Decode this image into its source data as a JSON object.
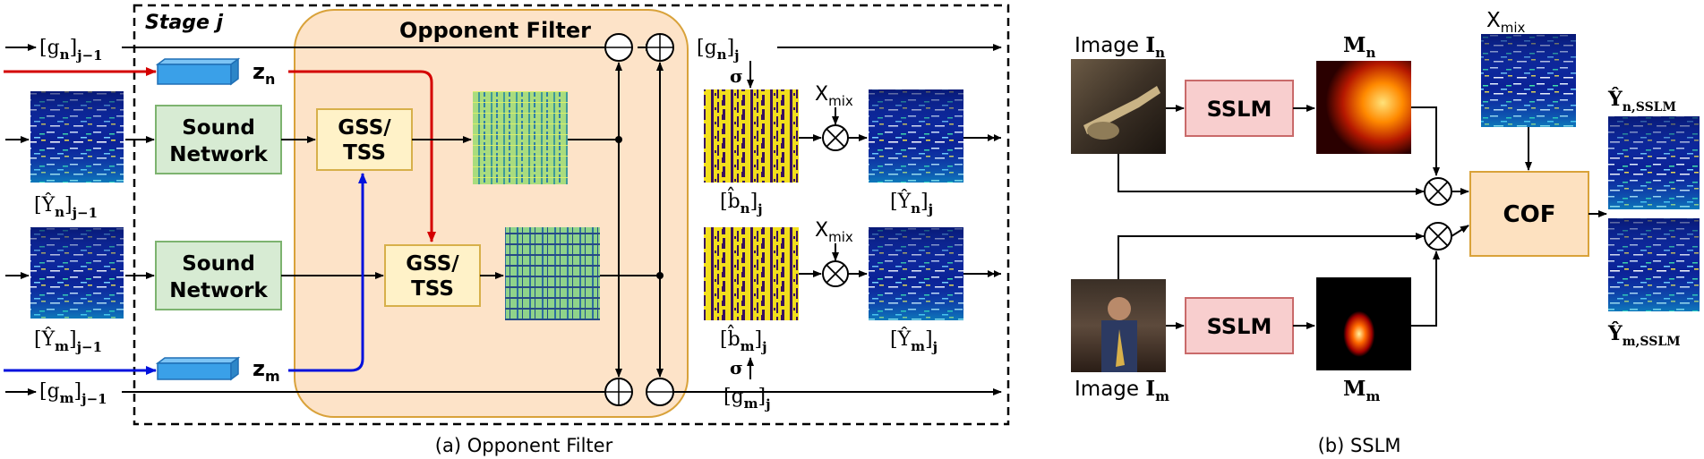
{
  "part_a": {
    "stage_label": "Stage j",
    "opponent_filter_title": "Opponent Filter",
    "caption": "(a) Opponent Filter",
    "g_n_in": "[g",
    "g_n_in_sub": "n",
    "g_n_in_close": "]",
    "g_n_in_idx": "j−1",
    "g_m_in": "[g",
    "g_m_in_sub": "m",
    "g_m_in_close": "]",
    "g_m_in_idx": "j−1",
    "g_n_out": "[g",
    "g_n_out_sub": "n",
    "g_n_out_close": "]",
    "g_n_out_idx": "j",
    "g_m_out": "[g",
    "g_m_out_sub": "m",
    "g_m_out_close": "]",
    "g_m_out_idx": "j",
    "z_n": "z",
    "z_n_sub": "n",
    "z_m": "z",
    "z_m_sub": "m",
    "sound_network_line1": "Sound",
    "sound_network_line2": "Network",
    "gss_line1": "GSS/",
    "gss_line2": "TSS",
    "y_n_in": "[Ŷ",
    "y_n_in_sub": "n",
    "y_n_in_close": "]",
    "y_n_in_idx": "j−1",
    "y_m_in": "[Ŷ",
    "y_m_in_sub": "m",
    "y_m_in_close": "]",
    "y_m_in_idx": "j−1",
    "b_n": "[b̂",
    "b_n_sub": "n",
    "b_n_close": "]",
    "b_n_idx": "j",
    "b_m": "[b̂",
    "b_m_sub": "m",
    "b_m_close": "]",
    "b_m_idx": "j",
    "y_n_out": "[Ŷ",
    "y_n_out_sub": "n",
    "y_n_out_close": "]",
    "y_n_out_idx": "j",
    "y_m_out": "[Ŷ",
    "y_m_out_sub": "m",
    "y_m_out_close": "]",
    "y_m_out_idx": "j",
    "sigma": "σ",
    "x_mix": "X",
    "x_mix_sub": "mix"
  },
  "part_b": {
    "caption": "(b) SSLM",
    "image_n": "Image ",
    "image_n_sym": "I",
    "image_n_sub": "n",
    "image_m": "Image ",
    "image_m_sym": "I",
    "image_m_sub": "m",
    "sslm": "SSLM",
    "m_n": "M",
    "m_n_sub": "n",
    "m_m": "M",
    "m_m_sub": "m",
    "x_mix": "X",
    "x_mix_sub": "mix",
    "cof": "COF",
    "y_n_sslm": "Ŷ",
    "y_n_sslm_sub": "n,SSLM",
    "y_m_sslm": "Ŷ",
    "y_m_sslm_sub": "m,SSLM"
  },
  "colors": {
    "opponent_bg": "#fde3c8",
    "opponent_border": "#d9a23a",
    "sound_network_fill": "#d7ebd3",
    "sound_network_stroke": "#7db36f",
    "gss_fill": "#fff2c8",
    "gss_stroke": "#d7b04a",
    "sslm_fill": "#f8cece",
    "sslm_stroke": "#c96a6a",
    "cof_fill": "#fde1c0",
    "cof_stroke": "#d9a23a",
    "z_block": "#3aa0e8",
    "red_path": "#d40000",
    "blue_path": "#0011dd",
    "spectrogram_dark": "#0a1a8c",
    "mask_yellow": "#f5e21a",
    "mask_purple": "#3c0f5e"
  }
}
